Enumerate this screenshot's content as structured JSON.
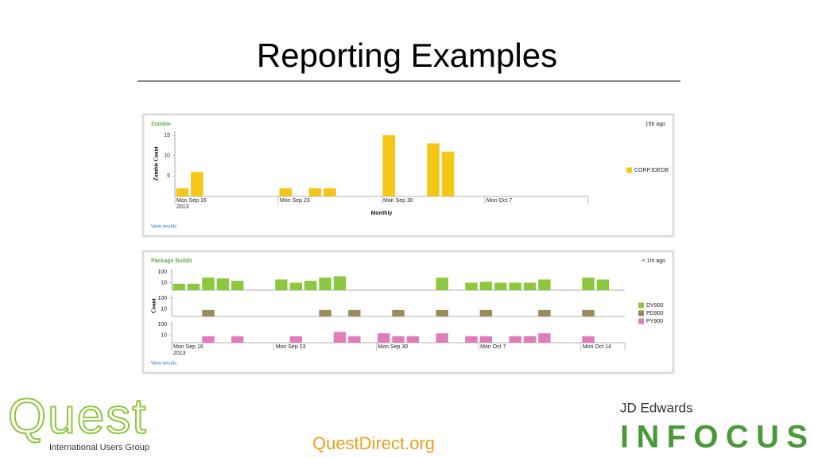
{
  "title": "Reporting Examples",
  "footer": {
    "quest_logo": "Quest",
    "quest_subtitle": "International Users Group",
    "link": "QuestDirect.org",
    "jde": "JD Edwards",
    "infocus": "INFOCUS"
  },
  "chart_data": [
    {
      "type": "bar",
      "title": "Zombie",
      "status": "15h ago",
      "x_label": "Monthly",
      "y_label": "Zombie Count",
      "link": "View results",
      "categories": [
        "Mon Sep 16",
        null,
        null,
        null,
        null,
        null,
        null,
        "Mon Sep 23",
        null,
        null,
        null,
        null,
        null,
        null,
        "Mon Sep 30",
        null,
        null,
        null,
        null,
        null,
        null,
        "Mon Oct 7",
        null,
        null,
        null,
        null,
        null,
        null
      ],
      "x_year_label": "2013",
      "series": [
        {
          "name": "CORPJDEDB",
          "color": "#f5c518",
          "values": [
            2,
            6,
            null,
            null,
            null,
            null,
            null,
            2,
            null,
            2,
            2,
            null,
            null,
            null,
            15,
            null,
            null,
            13,
            11,
            null,
            null,
            null,
            null,
            null,
            null,
            null,
            null,
            null
          ]
        }
      ],
      "ylim": [
        0,
        16
      ],
      "yticks": [
        5,
        10,
        15
      ],
      "log_scale": false,
      "stacked_panels": false
    },
    {
      "type": "bar",
      "title": "Package Builds",
      "status": "< 1m ago",
      "y_label": "Count",
      "link": "View results",
      "categories": [
        "Mon Sep 16",
        null,
        null,
        null,
        null,
        null,
        null,
        "Mon Sep 23",
        null,
        null,
        null,
        null,
        null,
        null,
        "Mon Sep 30",
        null,
        null,
        null,
        null,
        null,
        null,
        "Mon Oct 7",
        null,
        null,
        null,
        null,
        null,
        null,
        "Mon Oct 14",
        null,
        null
      ],
      "x_year_label": "2013",
      "series": [
        {
          "name": "DV900",
          "color": "#8dc63f",
          "values": [
            8,
            8,
            30,
            25,
            15,
            null,
            null,
            20,
            10,
            15,
            30,
            40,
            null,
            null,
            null,
            null,
            null,
            null,
            30,
            null,
            10,
            12,
            10,
            10,
            10,
            20,
            null,
            null,
            30,
            20,
            null
          ]
        },
        {
          "name": "PD900",
          "color": "#9c8a5a",
          "values": [
            null,
            null,
            8,
            null,
            null,
            null,
            null,
            null,
            null,
            null,
            8,
            null,
            8,
            null,
            null,
            8,
            null,
            null,
            8,
            null,
            null,
            8,
            null,
            null,
            null,
            8,
            null,
            null,
            8,
            null,
            null
          ]
        },
        {
          "name": "PY900",
          "color": "#e07cb8",
          "values": [
            null,
            null,
            8,
            null,
            8,
            null,
            null,
            null,
            8,
            null,
            null,
            20,
            8,
            null,
            15,
            8,
            8,
            null,
            15,
            null,
            8,
            8,
            null,
            8,
            8,
            15,
            null,
            null,
            8,
            null,
            null
          ]
        }
      ],
      "ylim": [
        2,
        200
      ],
      "yticks": [
        10,
        100
      ],
      "log_scale": true,
      "stacked_panels": true
    }
  ]
}
